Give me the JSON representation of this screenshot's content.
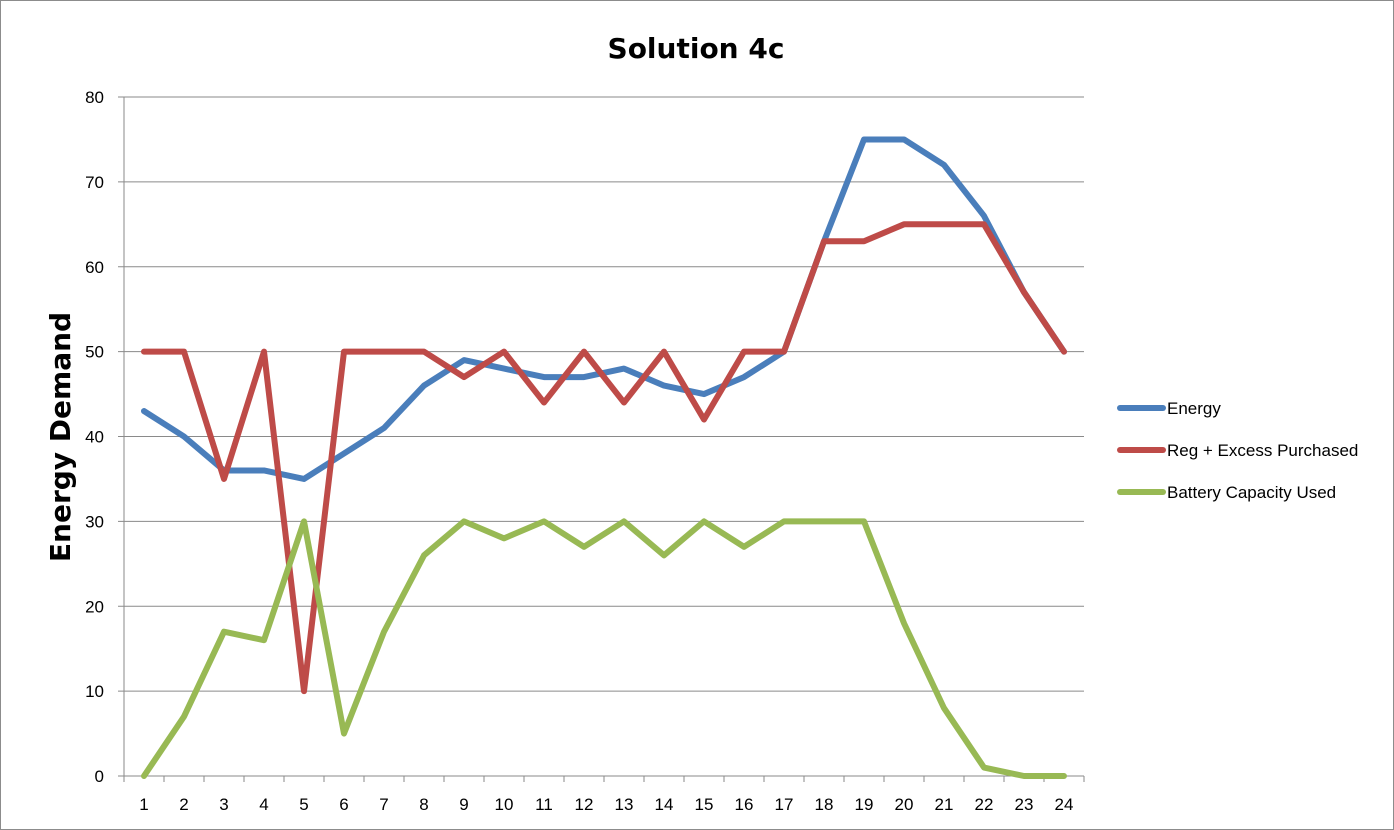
{
  "chart_data": {
    "type": "line",
    "title": "Solution 4c",
    "xlabel": "",
    "ylabel": "Energy Demand",
    "ylim": [
      0,
      80
    ],
    "yticks": [
      0,
      10,
      20,
      30,
      40,
      50,
      60,
      70,
      80
    ],
    "grid": true,
    "legend_position": "right",
    "x": [
      1,
      2,
      3,
      4,
      5,
      6,
      7,
      8,
      9,
      10,
      11,
      12,
      13,
      14,
      15,
      16,
      17,
      18,
      19,
      20,
      21,
      22,
      23,
      24
    ],
    "series": [
      {
        "name": "Energy",
        "color": "#4a7ebb",
        "values": [
          43,
          40,
          36,
          36,
          35,
          38,
          41,
          46,
          49,
          48,
          47,
          47,
          48,
          46,
          45,
          47,
          50,
          63,
          75,
          75,
          72,
          66,
          57,
          50
        ]
      },
      {
        "name": "Reg + Excess Purchased",
        "color": "#be4b48",
        "values": [
          50,
          50,
          35,
          50,
          10,
          50,
          50,
          50,
          47,
          50,
          44,
          50,
          44,
          50,
          42,
          50,
          50,
          63,
          63,
          65,
          65,
          65,
          57,
          50
        ]
      },
      {
        "name": "Battery Capacity Used",
        "color": "#98b954",
        "values": [
          0,
          7,
          17,
          16,
          30,
          5,
          17,
          26,
          30,
          28,
          30,
          27,
          30,
          26,
          30,
          27,
          30,
          30,
          30,
          18,
          8,
          1,
          0,
          0
        ]
      }
    ]
  }
}
